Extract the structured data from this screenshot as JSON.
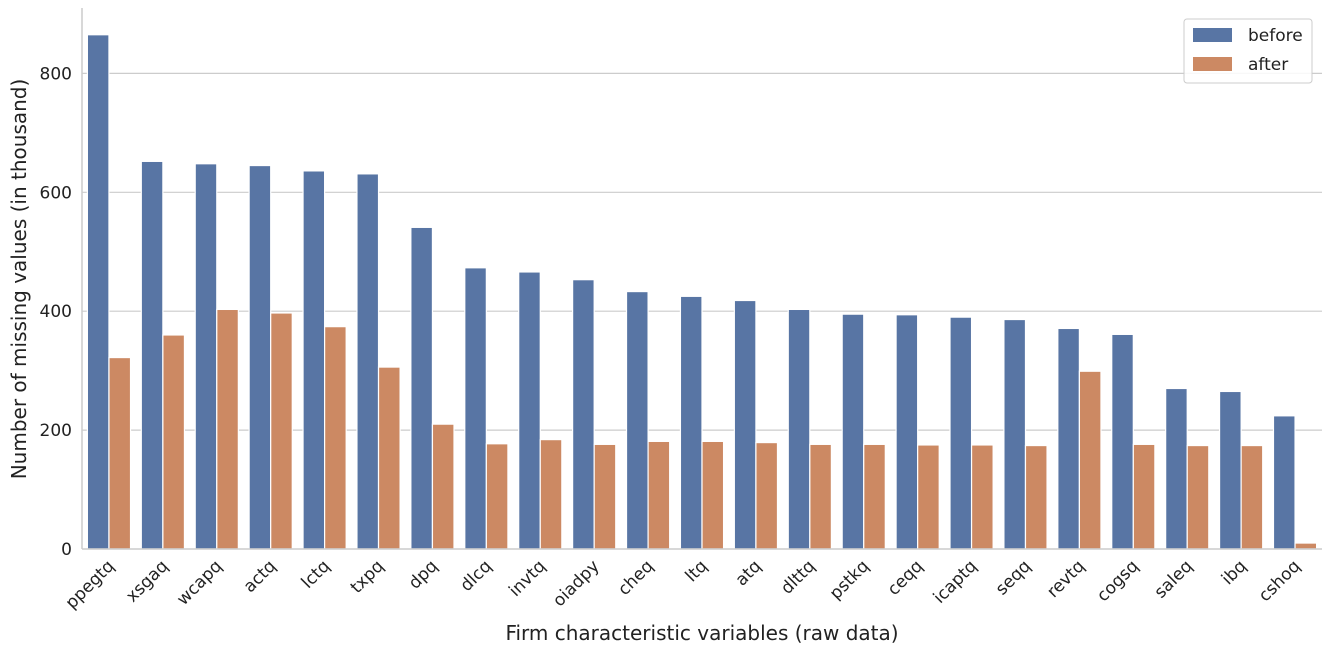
{
  "chart_data": {
    "type": "bar",
    "title": "",
    "xlabel": "Firm characteristic variables (raw data)",
    "ylabel": "Number of missing values (in thousand)",
    "ylim": [
      0,
      910
    ],
    "yticks": [
      0,
      200,
      400,
      600,
      800
    ],
    "grid": "horizontal",
    "legend_position": "top-right",
    "categories": [
      "ppegtq",
      "xsgaq",
      "wcapq",
      "actq",
      "lctq",
      "txpq",
      "dpq",
      "dlcq",
      "invtq",
      "oiadpy",
      "cheq",
      "ltq",
      "atq",
      "dlttq",
      "pstkq",
      "ceqq",
      "icaptq",
      "seqq",
      "revtq",
      "cogsq",
      "saleq",
      "ibq",
      "cshoq"
    ],
    "series": [
      {
        "name": "before",
        "color": "#5875a4",
        "values": [
          865,
          652,
          648,
          645,
          636,
          631,
          541,
          473,
          466,
          453,
          433,
          425,
          418,
          403,
          395,
          394,
          390,
          386,
          371,
          361,
          270,
          265,
          224
        ]
      },
      {
        "name": "after",
        "color": "#cc8963",
        "values": [
          322,
          360,
          403,
          397,
          374,
          306,
          210,
          177,
          184,
          176,
          181,
          181,
          179,
          176,
          176,
          175,
          175,
          174,
          299,
          176,
          174,
          174,
          10
        ]
      }
    ]
  }
}
